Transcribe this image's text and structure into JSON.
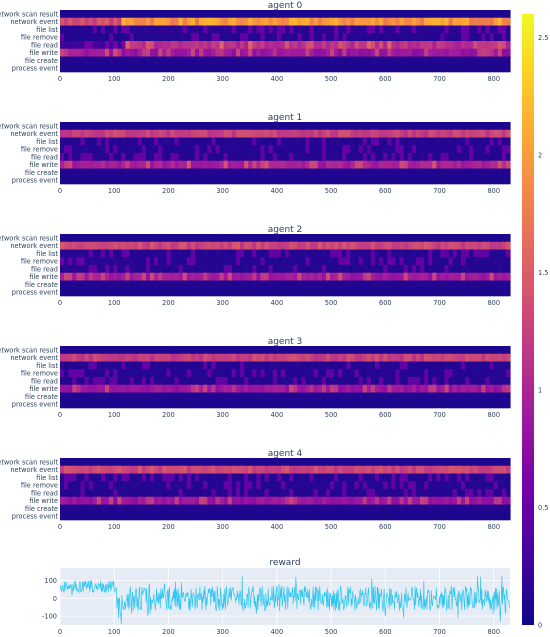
{
  "figure": {
    "colorscale": [
      "#0d0887",
      "#46039f",
      "#7201a8",
      "#9c179e",
      "#bd3786",
      "#d8576b",
      "#ed7953",
      "#fb9f3a",
      "#fdca26",
      "#f0f921"
    ],
    "plot_bg": "#e5ecf6"
  },
  "chart_data": [
    {
      "type": "heatmap",
      "title": "agent 0",
      "rows": [
        "network scan result",
        "network event",
        "file list",
        "file remove",
        "file read",
        "file write",
        "file create",
        "process event"
      ],
      "x_ticks": [
        0,
        100,
        200,
        300,
        400,
        500,
        600,
        700,
        800
      ],
      "xlim": [
        0,
        830
      ],
      "row_levels": [
        {
          "early": 0.08,
          "late": 0.08,
          "switch_x": 110,
          "stripes": false
        },
        {
          "early": 1.35,
          "late": 1.95,
          "switch_x": 110,
          "stripes": false
        },
        {
          "early": 0.12,
          "late": 0.15,
          "switch_x": 110,
          "stripes": true
        },
        {
          "early": 0.1,
          "late": 0.12,
          "switch_x": 120,
          "stripes": true
        },
        {
          "early": 0.25,
          "late": 1.1,
          "switch_x": 120,
          "stripes": true
        },
        {
          "early": 0.9,
          "late": 0.85,
          "switch_x": 110,
          "stripes": true
        },
        {
          "early": 0.1,
          "late": 0.1,
          "switch_x": 110,
          "stripes": false
        },
        {
          "early": 0.08,
          "late": 0.08,
          "switch_x": 110,
          "stripes": false
        }
      ]
    },
    {
      "type": "heatmap",
      "title": "agent 1",
      "rows": [
        "network scan result",
        "network event",
        "file list",
        "file remove",
        "file read",
        "file write",
        "file create",
        "process event"
      ],
      "x_ticks": [
        0,
        100,
        200,
        300,
        400,
        500,
        600,
        700,
        800
      ],
      "xlim": [
        0,
        830
      ],
      "row_levels": [
        {
          "early": 0.08,
          "late": 0.08,
          "switch_x": 0,
          "stripes": false
        },
        {
          "early": 1.25,
          "late": 1.25,
          "switch_x": 0,
          "stripes": false
        },
        {
          "early": 0.12,
          "late": 0.12,
          "switch_x": 0,
          "stripes": true
        },
        {
          "early": 0.12,
          "late": 0.12,
          "switch_x": 0,
          "stripes": true
        },
        {
          "early": 0.12,
          "late": 0.12,
          "switch_x": 0,
          "stripes": true
        },
        {
          "early": 0.95,
          "late": 0.95,
          "switch_x": 0,
          "stripes": true
        },
        {
          "early": 0.1,
          "late": 0.1,
          "switch_x": 0,
          "stripes": false
        },
        {
          "early": 0.08,
          "late": 0.08,
          "switch_x": 0,
          "stripes": false
        }
      ]
    },
    {
      "type": "heatmap",
      "title": "agent 2",
      "rows": [
        "network scan result",
        "network event",
        "file list",
        "file remove",
        "file read",
        "file write",
        "file create",
        "process event"
      ],
      "x_ticks": [
        0,
        100,
        200,
        300,
        400,
        500,
        600,
        700,
        800
      ],
      "xlim": [
        0,
        830
      ],
      "row_levels": [
        {
          "early": 0.08,
          "late": 0.08,
          "switch_x": 0,
          "stripes": false
        },
        {
          "early": 1.3,
          "late": 1.3,
          "switch_x": 0,
          "stripes": false
        },
        {
          "early": 0.12,
          "late": 0.12,
          "switch_x": 0,
          "stripes": true
        },
        {
          "early": 0.15,
          "late": 0.12,
          "switch_x": 120,
          "stripes": true
        },
        {
          "early": 0.15,
          "late": 0.12,
          "switch_x": 120,
          "stripes": true
        },
        {
          "early": 0.9,
          "late": 0.9,
          "switch_x": 0,
          "stripes": true
        },
        {
          "early": 0.1,
          "late": 0.1,
          "switch_x": 0,
          "stripes": false
        },
        {
          "early": 0.08,
          "late": 0.08,
          "switch_x": 0,
          "stripes": false
        }
      ]
    },
    {
      "type": "heatmap",
      "title": "agent 3",
      "rows": [
        "network scan result",
        "network event",
        "file list",
        "file remove",
        "file read",
        "file write",
        "file create",
        "process event"
      ],
      "x_ticks": [
        0,
        100,
        200,
        300,
        400,
        500,
        600,
        700,
        800
      ],
      "xlim": [
        0,
        830
      ],
      "row_levels": [
        {
          "early": 0.08,
          "late": 0.08,
          "switch_x": 0,
          "stripes": false
        },
        {
          "early": 1.25,
          "late": 1.25,
          "switch_x": 0,
          "stripes": false
        },
        {
          "early": 0.12,
          "late": 0.12,
          "switch_x": 0,
          "stripes": true
        },
        {
          "early": 0.12,
          "late": 0.12,
          "switch_x": 0,
          "stripes": true
        },
        {
          "early": 0.12,
          "late": 0.12,
          "switch_x": 0,
          "stripes": true
        },
        {
          "early": 0.85,
          "late": 0.85,
          "switch_x": 0,
          "stripes": true
        },
        {
          "early": 0.1,
          "late": 0.1,
          "switch_x": 0,
          "stripes": false
        },
        {
          "early": 0.08,
          "late": 0.08,
          "switch_x": 0,
          "stripes": false
        }
      ]
    },
    {
      "type": "heatmap",
      "title": "agent 4",
      "rows": [
        "network scan result",
        "network event",
        "file list",
        "file remove",
        "file read",
        "file write",
        "file create",
        "process event"
      ],
      "x_ticks": [
        0,
        100,
        200,
        300,
        400,
        500,
        600,
        700,
        800
      ],
      "xlim": [
        0,
        830
      ],
      "row_levels": [
        {
          "early": 0.08,
          "late": 0.08,
          "switch_x": 0,
          "stripes": false
        },
        {
          "early": 1.3,
          "late": 1.3,
          "switch_x": 0,
          "stripes": false
        },
        {
          "early": 0.12,
          "late": 0.12,
          "switch_x": 0,
          "stripes": true
        },
        {
          "early": 0.12,
          "late": 0.12,
          "switch_x": 0,
          "stripes": true
        },
        {
          "early": 0.12,
          "late": 0.12,
          "switch_x": 0,
          "stripes": true
        },
        {
          "early": 0.85,
          "late": 0.85,
          "switch_x": 0,
          "stripes": true
        },
        {
          "early": 0.1,
          "late": 0.1,
          "switch_x": 0,
          "stripes": false
        },
        {
          "early": 0.08,
          "late": 0.08,
          "switch_x": 0,
          "stripes": false
        }
      ]
    },
    {
      "type": "line",
      "title": "reward",
      "x_ticks": [
        0,
        100,
        200,
        300,
        400,
        500,
        600,
        700,
        800
      ],
      "xlim": [
        0,
        830
      ],
      "y_ticks": [
        100,
        0,
        -100
      ],
      "ylim": [
        -150,
        170
      ],
      "line_color": "#2fc6f0",
      "segments": [
        {
          "x_start": 0,
          "x_end": 105,
          "mean": 65,
          "noise": 35
        },
        {
          "x_start": 105,
          "x_end": 115,
          "mean": -60,
          "noise": 80
        },
        {
          "x_start": 115,
          "x_end": 830,
          "mean": 0,
          "noise": 70
        }
      ]
    },
    {
      "type": "colorbar",
      "range": [
        0,
        2.6
      ],
      "ticks": [
        0,
        0.5,
        1,
        1.5,
        2,
        2.5
      ],
      "tick_labels": [
        "0",
        "0.5",
        "1",
        "1.5",
        "2",
        "2.5"
      ]
    }
  ]
}
